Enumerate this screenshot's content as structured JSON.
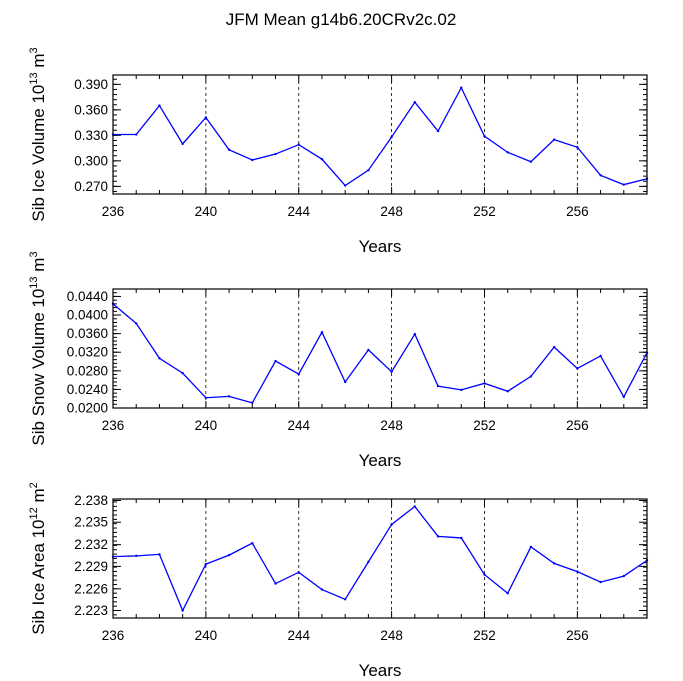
{
  "title": "JFM Mean g14b6.20CRv2c.02",
  "chart_data": [
    {
      "type": "line",
      "xlabel": "Years",
      "ylabel": {
        "base": "Sib Ice Volume 10",
        "exp": "13",
        "unit": " m",
        "unit_exp": "3"
      },
      "x": [
        236,
        237,
        238,
        239,
        240,
        241,
        242,
        243,
        244,
        245,
        246,
        247,
        248,
        249,
        250,
        251,
        252,
        253,
        254,
        255,
        256,
        257,
        258,
        259
      ],
      "series": [
        {
          "values": [
            0.331,
            0.331,
            0.365,
            0.32,
            0.351,
            0.313,
            0.301,
            0.308,
            0.319,
            0.302,
            0.271,
            0.289,
            0.328,
            0.369,
            0.335,
            0.386,
            0.329,
            0.31,
            0.299,
            0.325,
            0.316,
            0.283,
            0.272,
            0.279
          ]
        }
      ],
      "xlim": [
        236,
        259
      ],
      "ylim": [
        0.261,
        0.401
      ],
      "xticks": [
        236,
        240,
        244,
        248,
        252,
        256
      ],
      "xtick_labels": [
        "236",
        "240",
        "244",
        "248",
        "252",
        "256"
      ],
      "yticks": [
        0.27,
        0.3,
        0.33,
        0.36,
        0.39
      ],
      "ytick_labels": [
        "0.270",
        "0.300",
        "0.330",
        "0.360",
        "0.390"
      ],
      "grid": "vertical dashed at major x ticks",
      "line_color": "#0000ff"
    },
    {
      "type": "line",
      "xlabel": "Years",
      "ylabel": {
        "base": "Sib Snow Volume 10",
        "exp": "13",
        "unit": " m",
        "unit_exp": "3"
      },
      "x": [
        236,
        237,
        238,
        239,
        240,
        241,
        242,
        243,
        244,
        245,
        246,
        247,
        248,
        249,
        250,
        251,
        252,
        253,
        254,
        255,
        256,
        257,
        258,
        259
      ],
      "series": [
        {
          "values": [
            0.0424,
            0.0382,
            0.0307,
            0.0275,
            0.0222,
            0.0225,
            0.0211,
            0.0301,
            0.0273,
            0.0363,
            0.0256,
            0.0325,
            0.0278,
            0.0359,
            0.0247,
            0.0239,
            0.0253,
            0.0236,
            0.0268,
            0.0331,
            0.0285,
            0.0312,
            0.0224,
            0.0319
          ]
        }
      ],
      "xlim": [
        236,
        259
      ],
      "ylim": [
        0.02,
        0.0456
      ],
      "xticks": [
        236,
        240,
        244,
        248,
        252,
        256
      ],
      "xtick_labels": [
        "236",
        "240",
        "244",
        "248",
        "252",
        "256"
      ],
      "yticks": [
        0.02,
        0.024,
        0.028,
        0.032,
        0.036,
        0.04,
        0.044
      ],
      "ytick_labels": [
        "0.0200",
        "0.0240",
        "0.0280",
        "0.0320",
        "0.0360",
        "0.0400",
        "0.0440"
      ],
      "grid": "vertical dashed at major x ticks",
      "line_color": "#0000ff"
    },
    {
      "type": "line",
      "xlabel": "Years",
      "ylabel": {
        "base": "Sib Ice Area 10",
        "exp": "12",
        "unit": " m",
        "unit_exp": "2"
      },
      "x": [
        236,
        237,
        238,
        239,
        240,
        241,
        242,
        243,
        244,
        245,
        246,
        247,
        248,
        249,
        250,
        251,
        252,
        253,
        254,
        255,
        256,
        257,
        258,
        259
      ],
      "series": [
        {
          "values": [
            2.2305,
            2.2306,
            2.2308,
            2.2233,
            2.2295,
            2.2307,
            2.2323,
            2.2269,
            2.2284,
            2.2261,
            2.2248,
            2.2298,
            2.2348,
            2.2372,
            2.2332,
            2.233,
            2.2281,
            2.2256,
            2.2318,
            2.2296,
            2.2285,
            2.2271,
            2.2279,
            2.23
          ]
        }
      ],
      "xlim": [
        236,
        259
      ],
      "ylim": [
        2.2223,
        2.2382
      ],
      "xticks": [
        236,
        240,
        244,
        248,
        252,
        256
      ],
      "xtick_labels": [
        "236",
        "240",
        "244",
        "248",
        "252",
        "256"
      ],
      "yticks": [
        2.2233,
        2.2262,
        2.2292,
        2.2321,
        2.2351,
        2.238
      ],
      "ytick_labels": [
        "2.223",
        "2.226",
        "2.229",
        "2.232",
        "2.235",
        "2.238"
      ],
      "grid": "vertical dashed at major x ticks",
      "line_color": "#0000ff"
    }
  ]
}
